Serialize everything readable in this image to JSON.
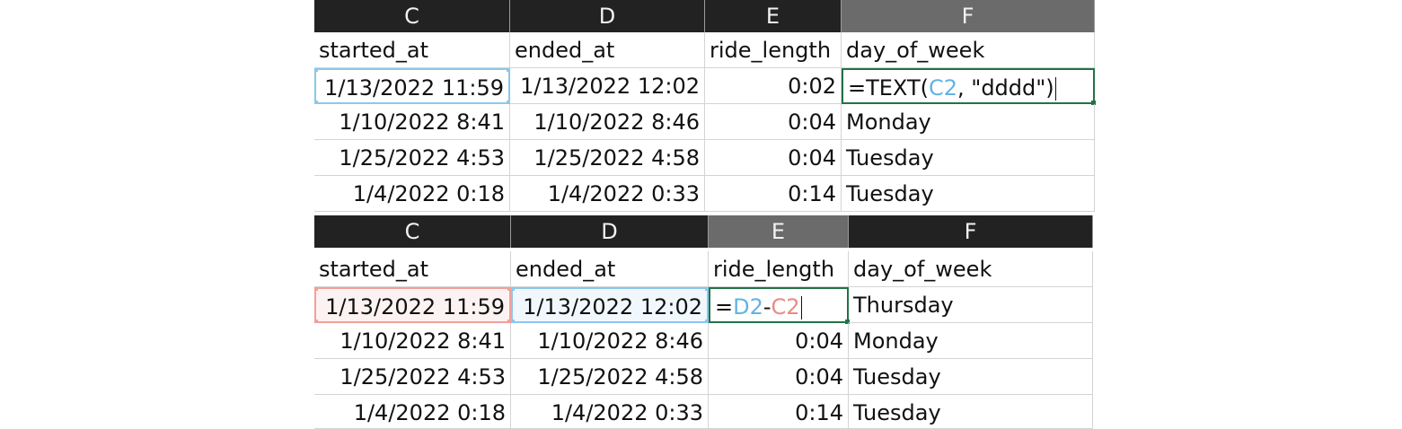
{
  "sheet1": {
    "columns": [
      "C",
      "D",
      "E",
      "F"
    ],
    "selected_column": "F",
    "headers": [
      "started_at",
      "ended_at",
      "ride_length",
      "day_of_week"
    ],
    "rows": [
      [
        "1/13/2022 11:59",
        "1/13/2022 12:02",
        "0:02",
        ""
      ],
      [
        "1/10/2022 8:41",
        "1/10/2022 8:46",
        "0:04",
        "Monday"
      ],
      [
        "1/25/2022 4:53",
        "1/25/2022 4:58",
        "0:04",
        "Tuesday"
      ],
      [
        "1/4/2022 0:18",
        "1/4/2022 0:33",
        "0:14",
        "Tuesday"
      ]
    ],
    "formula": {
      "prefix": "=TEXT(",
      "ref": "C2",
      "suffix": ", \"dddd\")"
    }
  },
  "sheet2": {
    "columns": [
      "C",
      "D",
      "E",
      "F"
    ],
    "selected_column": "E",
    "headers": [
      "started_at",
      "ended_at",
      "ride_length",
      "day_of_week"
    ],
    "rows": [
      [
        "1/13/2022 11:59",
        "1/13/2022 12:02",
        "",
        "Thursday"
      ],
      [
        "1/10/2022 8:41",
        "1/10/2022 8:46",
        "0:04",
        "Monday"
      ],
      [
        "1/25/2022 4:53",
        "1/25/2022 4:58",
        "0:04",
        "Tuesday"
      ],
      [
        "1/4/2022 0:18",
        "1/4/2022 0:33",
        "0:14",
        "Tuesday"
      ]
    ],
    "formula": {
      "prefix": "=",
      "ref1": "D2",
      "op": "-",
      "ref2": "C2"
    }
  },
  "colors": {
    "header_bg": "#222222",
    "header_selected_bg": "#6b6b6b",
    "ref_blue": "#8cc7ec",
    "ref_red": "#f1a09a",
    "active_border": "#217346"
  }
}
